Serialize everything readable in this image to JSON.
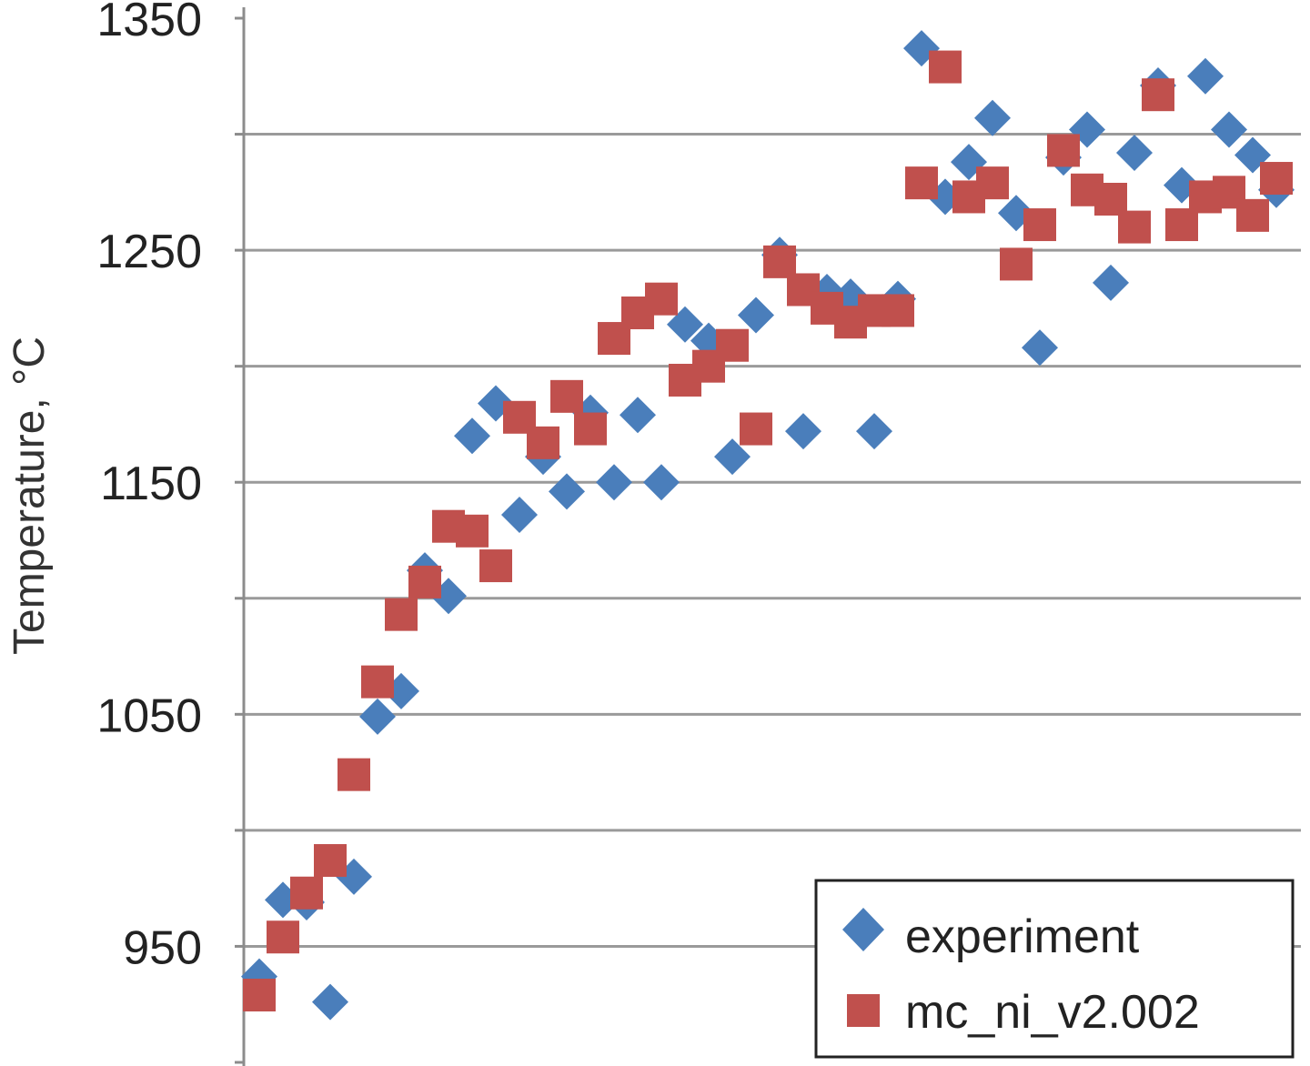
{
  "chart_data": {
    "type": "scatter",
    "title": "",
    "xlabel": "",
    "ylabel": "Temperature, °C",
    "ylim": [
      900,
      1350
    ],
    "y_tick_labels": [
      "950",
      "1050",
      "1150",
      "1250",
      "1350"
    ],
    "grid": true,
    "legend_position": "bottom-right",
    "series": [
      {
        "name": "experiment",
        "marker": "diamond",
        "color": "#4a7ebb",
        "points": [
          [
            1,
            937
          ],
          [
            2,
            970
          ],
          [
            3,
            969
          ],
          [
            4,
            926
          ],
          [
            5,
            980
          ],
          [
            6,
            1049
          ],
          [
            7,
            1060
          ],
          [
            8,
            1112
          ],
          [
            9,
            1101
          ],
          [
            10,
            1170
          ],
          [
            11,
            1184
          ],
          [
            12,
            1136
          ],
          [
            13,
            1161
          ],
          [
            14,
            1146
          ],
          [
            15,
            1180
          ],
          [
            16,
            1150
          ],
          [
            17,
            1179
          ],
          [
            18,
            1150
          ],
          [
            19,
            1218
          ],
          [
            20,
            1211
          ],
          [
            21,
            1161
          ],
          [
            22,
            1222
          ],
          [
            23,
            1248
          ],
          [
            24,
            1172
          ],
          [
            25,
            1232
          ],
          [
            26,
            1230
          ],
          [
            27,
            1172
          ],
          [
            28,
            1229
          ],
          [
            29,
            1337
          ],
          [
            30,
            1273
          ],
          [
            31,
            1288
          ],
          [
            32,
            1307
          ],
          [
            33,
            1266
          ],
          [
            34,
            1208
          ],
          [
            35,
            1290
          ],
          [
            36,
            1302
          ],
          [
            37,
            1236
          ],
          [
            38,
            1292
          ],
          [
            39,
            1321
          ],
          [
            40,
            1278
          ],
          [
            41,
            1325
          ],
          [
            42,
            1302
          ],
          [
            43,
            1291
          ],
          [
            44,
            1276
          ]
        ]
      },
      {
        "name": "mc_ni_v2.002",
        "marker": "square",
        "color": "#c0504d",
        "points": [
          [
            1,
            929
          ],
          [
            2,
            954
          ],
          [
            3,
            973
          ],
          [
            4,
            987
          ],
          [
            5,
            1024
          ],
          [
            6,
            1064
          ],
          [
            7,
            1093
          ],
          [
            8,
            1107
          ],
          [
            9,
            1131
          ],
          [
            10,
            1129
          ],
          [
            11,
            1114
          ],
          [
            12,
            1178
          ],
          [
            13,
            1167
          ],
          [
            14,
            1187
          ],
          [
            15,
            1173
          ],
          [
            16,
            1212
          ],
          [
            17,
            1223
          ],
          [
            18,
            1229
          ],
          [
            19,
            1194
          ],
          [
            20,
            1200
          ],
          [
            21,
            1209
          ],
          [
            22,
            1173
          ],
          [
            23,
            1245
          ],
          [
            24,
            1233
          ],
          [
            25,
            1225
          ],
          [
            26,
            1219
          ],
          [
            27,
            1224
          ],
          [
            28,
            1224
          ],
          [
            29,
            1279
          ],
          [
            30,
            1329
          ],
          [
            31,
            1273
          ],
          [
            32,
            1279
          ],
          [
            33,
            1244
          ],
          [
            34,
            1261
          ],
          [
            35,
            1293
          ],
          [
            36,
            1276
          ],
          [
            37,
            1272
          ],
          [
            38,
            1260
          ],
          [
            39,
            1317
          ],
          [
            40,
            1261
          ],
          [
            41,
            1273
          ],
          [
            42,
            1275
          ],
          [
            43,
            1265
          ],
          [
            44,
            1281
          ]
        ]
      }
    ]
  }
}
